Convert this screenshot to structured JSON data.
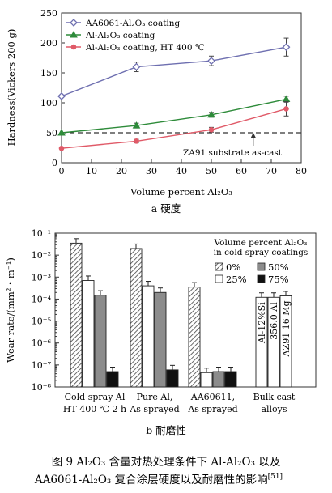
{
  "chart_data": [
    {
      "type": "line",
      "xlabel": "Volume percent Al₂O₃",
      "ylabel": "Hardness(Vickers 200 g)",
      "xlim": [
        0,
        80
      ],
      "ylim": [
        0,
        250
      ],
      "xticks": [
        "0",
        "10",
        "20",
        "30",
        "40",
        "50",
        "60",
        "70",
        "80"
      ],
      "yticks": [
        "0",
        "50",
        "100",
        "150",
        "200",
        "250"
      ],
      "grid": false,
      "legend_position": "top-left",
      "series": [
        {
          "name": "AA6061-Al₂O₃ coating",
          "color": "#6e6fb0",
          "marker": "diamond",
          "x": [
            0,
            25,
            50,
            75
          ],
          "y": [
            111,
            160,
            170,
            193
          ],
          "err": [
            0,
            8,
            8,
            15
          ]
        },
        {
          "name": "Al-Al₂O₃ coating",
          "color": "#2e8b3a",
          "marker": "triangle",
          "x": [
            0,
            25,
            50,
            75
          ],
          "y": [
            50,
            62,
            80,
            106
          ],
          "err": [
            0,
            4,
            4,
            5
          ]
        },
        {
          "name": "Al-Al₂O₃ coating, HT 400 ℃",
          "color": "#e05a68",
          "marker": "circle",
          "x": [
            0,
            25,
            50,
            75
          ],
          "y": [
            24,
            36,
            55,
            90
          ],
          "err": [
            0,
            3,
            4,
            12
          ]
        }
      ],
      "reference_line": {
        "y": 50,
        "label": "ZA91 substrate as-cast",
        "arrow_x": 64
      }
    },
    {
      "type": "bar",
      "ylabel": "Wear rate/(mm²・m⁻¹)",
      "yscale": "log",
      "ylim_exp": [
        -8,
        -1
      ],
      "yticks": [
        "10⁻⁸",
        "10⁻⁷",
        "10⁻⁶",
        "10⁻⁵",
        "10⁻⁴",
        "10⁻³",
        "10⁻²",
        "10⁻¹"
      ],
      "legend_title": "Volume percent Al₂O₃ in cold spray coatings",
      "legend": [
        {
          "label": "0%",
          "style": "hatch"
        },
        {
          "label": "50%",
          "style": "gray"
        },
        {
          "label": "25%",
          "style": "white"
        },
        {
          "label": "75%",
          "style": "black"
        }
      ],
      "groups": [
        {
          "label_lines": [
            "Cold spray Al",
            "HT 400 ℃ 2 h"
          ],
          "bars": [
            {
              "style": "hatch",
              "value": 0.035
            },
            {
              "style": "white",
              "value": 0.0007
            },
            {
              "style": "gray",
              "value": 0.00015
            },
            {
              "style": "black",
              "value": 5e-08
            }
          ]
        },
        {
          "label_lines": [
            "Pure Al,",
            "As sprayed"
          ],
          "bars": [
            {
              "style": "hatch",
              "value": 0.02
            },
            {
              "style": "white",
              "value": 0.0004
            },
            {
              "style": "gray",
              "value": 0.0002
            },
            {
              "style": "black",
              "value": 6e-08
            }
          ]
        },
        {
          "label_lines": [
            "AA60611,",
            "As sprayed"
          ],
          "bars": [
            {
              "style": "hatch",
              "value": 0.00035
            },
            {
              "style": "white",
              "value": 4.5e-08
            },
            {
              "style": "gray",
              "value": 5e-08
            },
            {
              "style": "black",
              "value": 5e-08
            }
          ]
        },
        {
          "label_lines": [
            "Bulk cast",
            "alloys"
          ],
          "bars": [
            {
              "style": "white",
              "value": 0.00012,
              "text": "Al-12%Si"
            },
            {
              "style": "white",
              "value": 0.00012,
              "text": "356.0 Al"
            },
            {
              "style": "white",
              "value": 0.00014,
              "text": "AZ91 16 Mg"
            }
          ]
        }
      ]
    }
  ],
  "captions": {
    "sub_a": "a  硬度",
    "sub_b": "b  耐磨性",
    "figure_line1": "图 9   Al₂O₃ 含量对热处理条件下 Al-Al₂O₃ 以及",
    "figure_line2": "AA6061-Al₂O₃ 复合涂层硬度以及耐磨性的影响",
    "figure_ref": "[51]"
  }
}
